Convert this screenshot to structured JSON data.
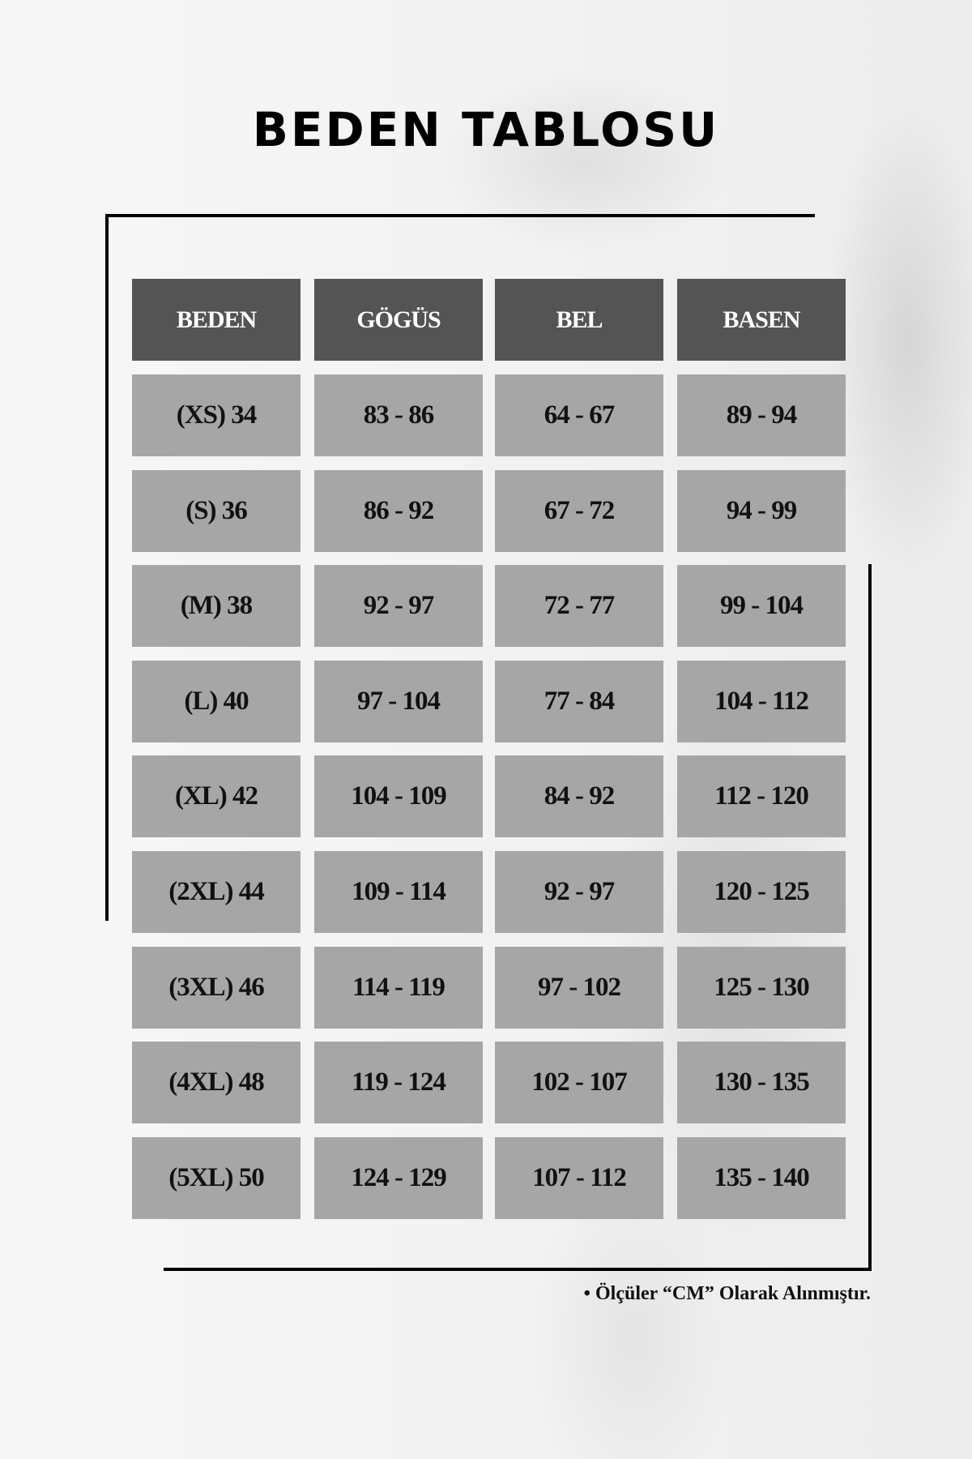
{
  "title": "BEDEN TABLOSU",
  "table": {
    "headers": [
      "BEDEN",
      "GÖGÜS",
      "BEL",
      "BASEN"
    ],
    "rows": [
      [
        "(XS) 34",
        "83 - 86",
        "64 - 67",
        "89 - 94"
      ],
      [
        "(S) 36",
        "86 - 92",
        "67 - 72",
        "94 - 99"
      ],
      [
        "(M) 38",
        "92 - 97",
        "72 - 77",
        "99 - 104"
      ],
      [
        "(L) 40",
        "97 - 104",
        "77 - 84",
        "104 - 112"
      ],
      [
        "(XL) 42",
        "104 - 109",
        "84 - 92",
        "112 - 120"
      ],
      [
        "(2XL) 44",
        "109 - 114",
        "92 - 97",
        "120 - 125"
      ],
      [
        "(3XL) 46",
        "114 - 119",
        "97 - 102",
        "125 - 130"
      ],
      [
        "(4XL) 48",
        "119 - 124",
        "102 - 107",
        "130 - 135"
      ],
      [
        "(5XL) 50",
        "124 - 129",
        "107 - 112",
        "135 - 140"
      ]
    ]
  },
  "note": "• Ölçüler “CM” Olarak Alınmıştır.",
  "colors": {
    "header_bg": "#545454",
    "cell_bg": "#a6a6a6",
    "header_text": "#ffffff"
  }
}
